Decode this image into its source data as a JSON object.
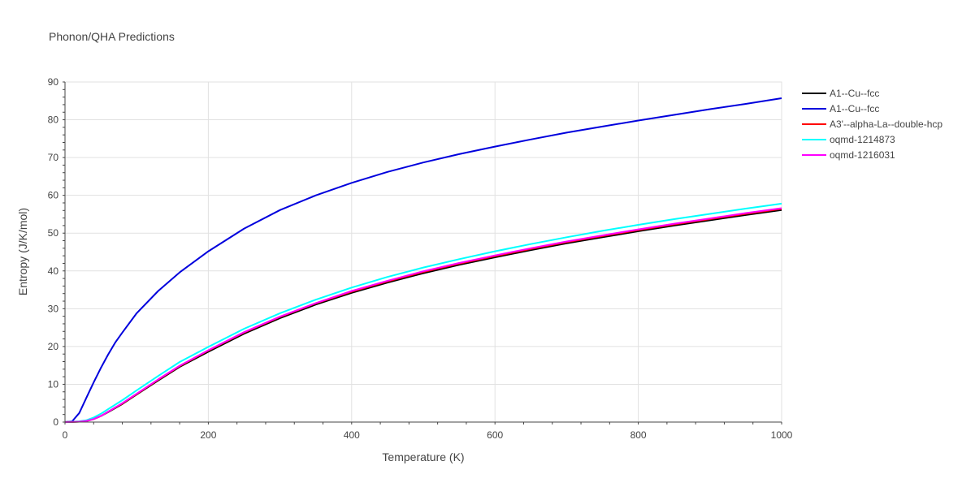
{
  "chart_data": {
    "type": "line",
    "title": "Phonon/QHA Predictions",
    "xlabel": "Temperature (K)",
    "ylabel": "Entropy (J/K/mol)",
    "xlim": [
      0,
      1000
    ],
    "ylim": [
      0,
      90
    ],
    "x_ticks": [
      0,
      200,
      400,
      600,
      800,
      1000
    ],
    "y_ticks": [
      0,
      10,
      20,
      30,
      40,
      50,
      60,
      70,
      80,
      90
    ],
    "grid": true,
    "legend_position": "top-right",
    "series": [
      {
        "name": "A1--Cu--fcc",
        "color": "#000000",
        "x": [
          0,
          20,
          30,
          40,
          50,
          60,
          80,
          100,
          130,
          160,
          200,
          250,
          300,
          350,
          400,
          450,
          500,
          550,
          600,
          650,
          700,
          750,
          800,
          850,
          900,
          950,
          1000
        ],
        "y": [
          0,
          0.1,
          0.3,
          0.8,
          1.6,
          2.6,
          4.8,
          7.3,
          11.0,
          14.6,
          18.6,
          23.4,
          27.5,
          31.1,
          34.2,
          36.9,
          39.4,
          41.6,
          43.6,
          45.5,
          47.3,
          48.9,
          50.5,
          52.0,
          53.4,
          54.8,
          56.1
        ]
      },
      {
        "name": "A1--Cu--fcc",
        "color": "#0000dd",
        "x": [
          0,
          10,
          20,
          30,
          40,
          50,
          60,
          70,
          80,
          100,
          130,
          160,
          200,
          250,
          300,
          350,
          400,
          450,
          500,
          550,
          600,
          650,
          700,
          750,
          800,
          850,
          900,
          950,
          1000
        ],
        "y": [
          0,
          0.2,
          2.4,
          6.5,
          10.5,
          14.3,
          17.8,
          21.0,
          23.7,
          28.8,
          34.7,
          39.6,
          45.2,
          51.2,
          56.1,
          60.0,
          63.3,
          66.2,
          68.7,
          70.9,
          72.9,
          74.8,
          76.6,
          78.2,
          79.8,
          81.3,
          82.8,
          84.2,
          85.7
        ]
      },
      {
        "name": "A3'--alpha-La--double-hcp",
        "color": "#ff0000",
        "x": [
          0,
          20,
          30,
          40,
          50,
          60,
          80,
          100,
          130,
          160,
          200,
          250,
          300,
          350,
          400,
          450,
          500,
          550,
          600,
          650,
          700,
          750,
          800,
          850,
          900,
          950,
          1000
        ],
        "y": [
          0,
          0.1,
          0.3,
          0.8,
          1.6,
          2.7,
          4.9,
          7.4,
          11.2,
          14.8,
          18.9,
          23.7,
          27.8,
          31.4,
          34.5,
          37.2,
          39.7,
          41.9,
          43.9,
          45.8,
          47.6,
          49.2,
          50.8,
          52.3,
          53.7,
          55.1,
          56.4
        ]
      },
      {
        "name": "oqmd-1214873",
        "color": "#00ffff",
        "x": [
          0,
          20,
          30,
          40,
          50,
          60,
          80,
          100,
          130,
          160,
          200,
          250,
          300,
          350,
          400,
          450,
          500,
          550,
          600,
          650,
          700,
          750,
          800,
          850,
          900,
          950,
          1000
        ],
        "y": [
          0,
          0.2,
          0.5,
          1.2,
          2.2,
          3.4,
          5.8,
          8.4,
          12.2,
          15.9,
          19.9,
          24.7,
          28.8,
          32.4,
          35.6,
          38.4,
          40.9,
          43.1,
          45.2,
          47.1,
          48.9,
          50.6,
          52.2,
          53.7,
          55.1,
          56.5,
          57.8
        ]
      },
      {
        "name": "oqmd-1216031",
        "color": "#ff00ff",
        "x": [
          0,
          20,
          30,
          40,
          50,
          60,
          80,
          100,
          130,
          160,
          200,
          250,
          300,
          350,
          400,
          450,
          500,
          550,
          600,
          650,
          700,
          750,
          800,
          850,
          900,
          950,
          1000
        ],
        "y": [
          0,
          0.1,
          0.3,
          0.8,
          1.6,
          2.7,
          5.0,
          7.5,
          11.3,
          14.9,
          19.0,
          23.8,
          27.9,
          31.5,
          34.7,
          37.4,
          39.9,
          42.1,
          44.1,
          46.0,
          47.8,
          49.4,
          51.0,
          52.5,
          53.9,
          55.3,
          56.6
        ]
      }
    ]
  }
}
